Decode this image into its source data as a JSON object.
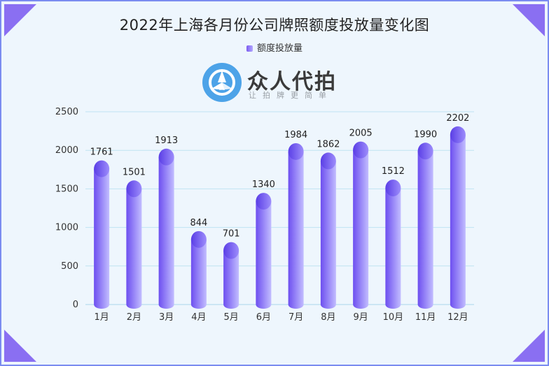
{
  "chart_data": {
    "type": "bar",
    "title": "2022年上海各月份公司牌照额度投放量变化图",
    "legend": {
      "position": "top-center",
      "entries": [
        "额度投放量"
      ]
    },
    "categories": [
      "1月",
      "2月",
      "3月",
      "4月",
      "5月",
      "6月",
      "7月",
      "8月",
      "9月",
      "10月",
      "11月",
      "12月"
    ],
    "series": [
      {
        "name": "额度投放量",
        "values": [
          1761,
          1501,
          1913,
          844,
          701,
          1340,
          1984,
          1862,
          2005,
          1512,
          1990,
          2202
        ]
      }
    ],
    "ylim": [
      0,
      2500
    ],
    "yticks": [
      0,
      500,
      1000,
      1500,
      2000,
      2500
    ],
    "grid": true,
    "colors": {
      "bar_dark": "#6d4ff0",
      "bar_light": "#c2bdff",
      "grid": "#bfe3f2",
      "axis": "#a9d6ea"
    }
  },
  "watermark": {
    "name": "众人代拍",
    "slogan": "让拍牌更简单"
  }
}
